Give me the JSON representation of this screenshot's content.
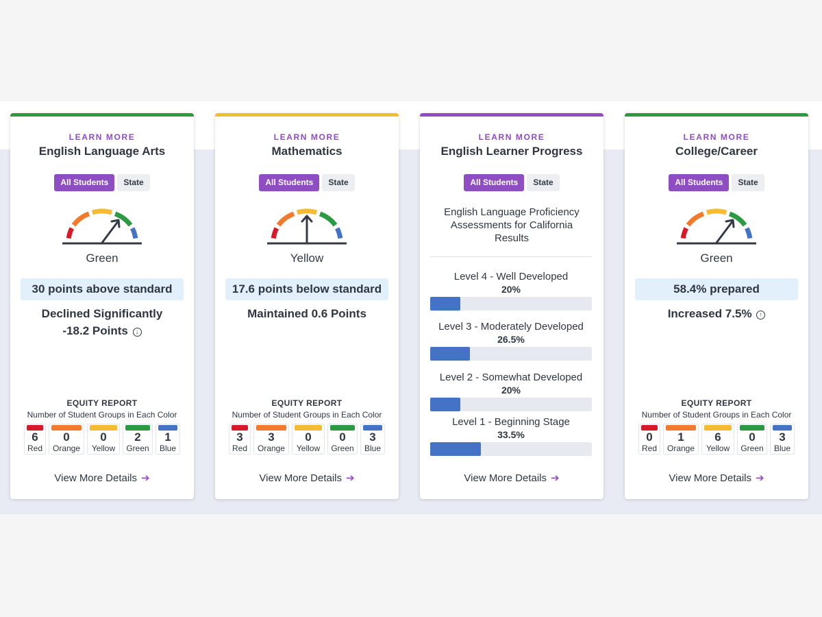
{
  "cards": [
    {
      "learn_more": "LEARN MORE",
      "title": "English Language Arts",
      "toggle": {
        "all": "All Students",
        "state": "State"
      },
      "performance_color": "Green",
      "status": "30 points above standard",
      "change_line1": "Declined Significantly",
      "change_line2": "-18.2 Points",
      "change_icon": "arrow-down-circle-icon",
      "equity": {
        "title": "EQUITY REPORT",
        "subtitle": "Number of Student Groups in Each Color",
        "groups": [
          {
            "label": "Red",
            "count": "6",
            "color": "#d7192a"
          },
          {
            "label": "Orange",
            "count": "0",
            "color": "#f27a2c"
          },
          {
            "label": "Yellow",
            "count": "0",
            "color": "#f5bc31"
          },
          {
            "label": "Green",
            "count": "2",
            "color": "#2c9a43"
          },
          {
            "label": "Blue",
            "count": "1",
            "color": "#4472c4"
          }
        ]
      },
      "details": "View More Details",
      "topbar_color": "#2c9a43"
    },
    {
      "learn_more": "LEARN MORE",
      "title": "Mathematics",
      "toggle": {
        "all": "All Students",
        "state": "State"
      },
      "performance_color": "Yellow",
      "status": "17.6 points below standard",
      "change_line1": "Maintained 0.6 Points",
      "equity": {
        "title": "EQUITY REPORT",
        "subtitle": "Number of Student Groups in Each Color",
        "groups": [
          {
            "label": "Red",
            "count": "3",
            "color": "#d7192a"
          },
          {
            "label": "Orange",
            "count": "3",
            "color": "#f27a2c"
          },
          {
            "label": "Yellow",
            "count": "0",
            "color": "#f5bc31"
          },
          {
            "label": "Green",
            "count": "0",
            "color": "#2c9a43"
          },
          {
            "label": "Blue",
            "count": "3",
            "color": "#4472c4"
          }
        ]
      },
      "details": "View More Details",
      "topbar_color": "#f5bc31"
    },
    {
      "learn_more": "LEARN MORE",
      "title": "English Learner Progress",
      "toggle": {
        "all": "All Students",
        "state": "State"
      },
      "description": "English Language Proficiency Assessments for California Results",
      "levels": [
        {
          "name": "Level 4 - Well Developed",
          "pct": "20%",
          "value": 20
        },
        {
          "name": "Level 3 - Moderately Developed",
          "pct": "26.5%",
          "value": 26.5
        },
        {
          "name": "Level 2 - Somewhat Developed",
          "pct": "20%",
          "value": 20
        },
        {
          "name": "Level 1 - Beginning Stage",
          "pct": "33.5%",
          "value": 33.5
        }
      ],
      "details": "View More Details",
      "topbar_color": "#8f4dc4"
    },
    {
      "learn_more": "LEARN MORE",
      "title": "College/Career",
      "toggle": {
        "all": "All Students",
        "state": "State"
      },
      "performance_color": "Green",
      "status": "58.4% prepared",
      "change_line1": "Increased 7.5%",
      "change_icon": "arrow-up-circle-icon",
      "equity": {
        "title": "EQUITY REPORT",
        "subtitle": "Number of Student Groups in Each Color",
        "groups": [
          {
            "label": "Red",
            "count": "0",
            "color": "#d7192a"
          },
          {
            "label": "Orange",
            "count": "1",
            "color": "#f27a2c"
          },
          {
            "label": "Yellow",
            "count": "6",
            "color": "#f5bc31"
          },
          {
            "label": "Green",
            "count": "0",
            "color": "#2c9a43"
          },
          {
            "label": "Blue",
            "count": "3",
            "color": "#4472c4"
          }
        ]
      },
      "details": "View More Details",
      "topbar_color": "#2c9a43"
    }
  ],
  "colors": {
    "accent": "#8f4dc4",
    "red": "#d7192a",
    "orange": "#f27a2c",
    "yellow": "#f5bc31",
    "green": "#2c9a43",
    "blue": "#4472c4",
    "status_box": "#e1f0fb"
  }
}
